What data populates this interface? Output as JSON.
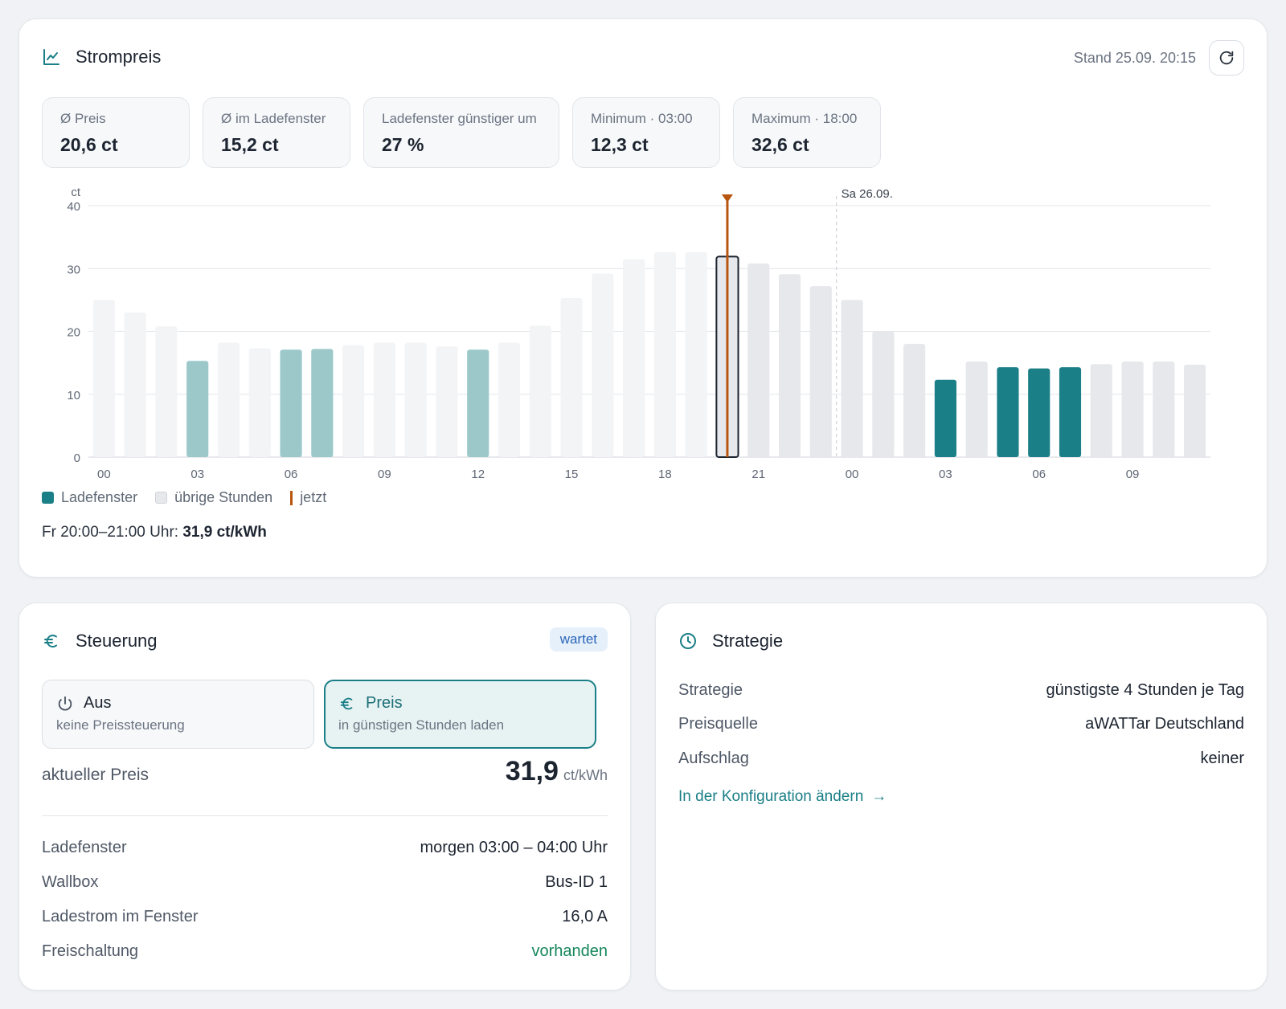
{
  "price_card": {
    "title": "Strompreis",
    "title_icon": "line-chart-icon",
    "stand": "Stand 25.09. 20:15",
    "refresh_icon": "refresh-icon",
    "stats": [
      {
        "label": "Ø Preis",
        "value": "20,6 ct"
      },
      {
        "label": "Ø im Ladefenster",
        "value": "15,2 ct"
      },
      {
        "label": "Ladefenster günstiger um",
        "value": "27 %"
      },
      {
        "label": "Minimum · 03:00",
        "value": "12,3 ct"
      },
      {
        "label": "Maximum · 18:00",
        "value": "32,6 ct"
      }
    ],
    "legend": {
      "charge": "Ladefenster",
      "other": "übrige Stunden",
      "now": "jetzt"
    },
    "hover_prefix": "Fr 20:00–21:00 Uhr:",
    "hover_value": "31,9 ct/kWh"
  },
  "chart_data": {
    "type": "bar",
    "ylabel": "ct",
    "ylim": [
      0,
      40
    ],
    "yticks": [
      0,
      10,
      20,
      30,
      40
    ],
    "x": [
      "00",
      "01",
      "02",
      "03",
      "04",
      "05",
      "06",
      "07",
      "08",
      "09",
      "10",
      "11",
      "12",
      "13",
      "14",
      "15",
      "16",
      "17",
      "18",
      "19",
      "20",
      "21",
      "22",
      "23",
      "00",
      "01",
      "02",
      "03",
      "04",
      "05",
      "06",
      "07",
      "08",
      "09",
      "10",
      "11"
    ],
    "xtick_labels": [
      "00",
      "03",
      "06",
      "09",
      "12",
      "15",
      "18",
      "21",
      "00",
      "03",
      "06",
      "09"
    ],
    "values": [
      25.0,
      23.0,
      20.8,
      15.3,
      18.2,
      17.3,
      17.1,
      17.2,
      17.8,
      18.2,
      18.2,
      17.6,
      17.1,
      18.2,
      20.9,
      25.3,
      29.2,
      31.5,
      32.6,
      32.6,
      31.9,
      30.8,
      29.1,
      27.2,
      25.0,
      20.0,
      18.0,
      12.3,
      15.2,
      14.3,
      14.1,
      14.3,
      14.8,
      15.2,
      15.2,
      14.7
    ],
    "charge_window": [
      3,
      6,
      7,
      12,
      27,
      29,
      30,
      31
    ],
    "now_index": 20,
    "day_split_index": 24,
    "day_split_label": "Sa 26.09.",
    "colors": {
      "charge": "#1b7f87",
      "other": "#e6e8ec",
      "now": "#b8560f",
      "past_charge": "#9cc8ca",
      "past_other": "#f3f4f6"
    }
  },
  "control_card": {
    "title": "Steuerung",
    "title_icon": "euro-icon",
    "badge": "wartet",
    "modes": [
      {
        "title": "Aus",
        "subtitle": "keine Preissteuerung",
        "icon": "power-icon"
      },
      {
        "title": "Preis",
        "subtitle": "in günstigen Stunden laden",
        "icon": "euro-icon"
      }
    ],
    "current_label": "aktueller Preis",
    "current_value": "31,9",
    "current_unit": "ct/kWh",
    "rows": [
      {
        "key": "Ladefenster",
        "value": "morgen 03:00 – 04:00 Uhr"
      },
      {
        "key": "Wallbox",
        "value": "Bus-ID 1"
      },
      {
        "key": "Ladestrom im Fenster",
        "value": "16,0 A"
      },
      {
        "key": "Freischaltung",
        "value": "vorhanden"
      }
    ]
  },
  "strategy_card": {
    "title": "Strategie",
    "title_icon": "clock-icon",
    "rows": [
      {
        "key": "Strategie",
        "value": "günstigste 4 Stunden je Tag"
      },
      {
        "key": "Preisquelle",
        "value": "aWATTar Deutschland"
      },
      {
        "key": "Aufschlag",
        "value": "keiner"
      }
    ],
    "link": "In der Konfiguration ändern",
    "link_icon": "arrow-right-icon"
  }
}
